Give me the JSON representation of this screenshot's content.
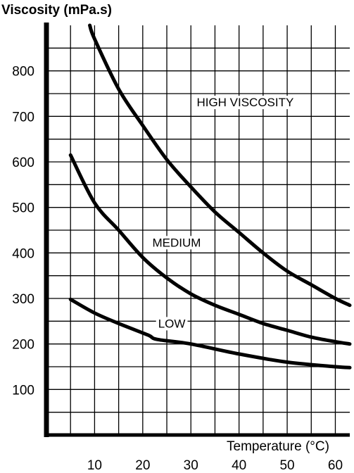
{
  "chart_data": {
    "type": "line",
    "title": "Viscosity (mPa.s)",
    "xlabel": "Temperature (°C)",
    "ylabel": "Viscosity (mPa.s)",
    "xlim": [
      0,
      63
    ],
    "ylim": [
      0,
      900
    ],
    "x_ticks": [
      10,
      20,
      30,
      40,
      50,
      60
    ],
    "y_ticks": [
      100,
      200,
      300,
      400,
      500,
      600,
      700,
      800
    ],
    "grid": true,
    "series": [
      {
        "name": "HIGH VISCOSITY",
        "x": [
          9,
          10,
          15,
          20,
          25,
          30,
          35,
          40,
          45,
          50,
          55,
          60,
          63
        ],
        "y": [
          900,
          870,
          760,
          680,
          605,
          545,
          490,
          445,
          400,
          360,
          330,
          300,
          285
        ]
      },
      {
        "name": "MEDIUM",
        "x": [
          5,
          10,
          15,
          20,
          25,
          30,
          35,
          40,
          45,
          50,
          55,
          60,
          63
        ],
        "y": [
          615,
          510,
          450,
          390,
          345,
          310,
          285,
          265,
          245,
          230,
          215,
          205,
          200
        ]
      },
      {
        "name": "LOW",
        "x": [
          5,
          10,
          15,
          21,
          23,
          30,
          40,
          50,
          60,
          63
        ],
        "y": [
          298,
          268,
          245,
          220,
          210,
          200,
          178,
          160,
          150,
          148
        ]
      }
    ]
  }
}
